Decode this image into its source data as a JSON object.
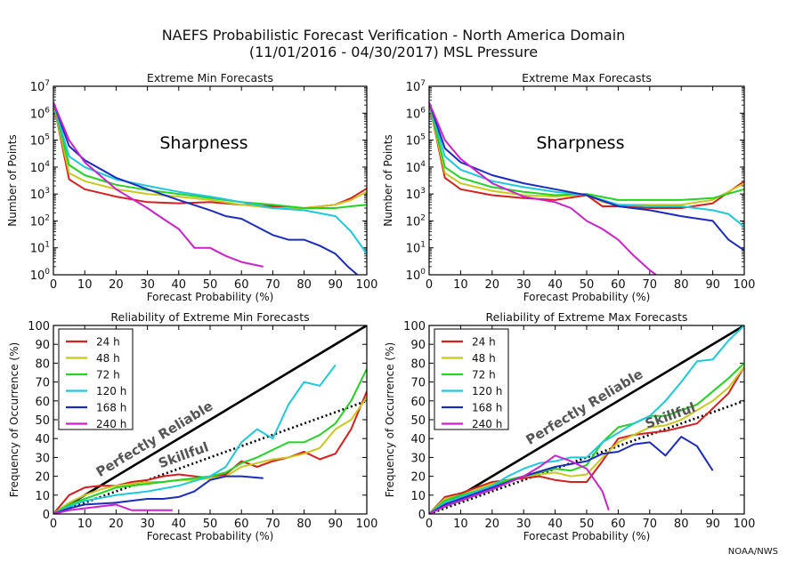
{
  "page": {
    "title_line1": "NAEFS Probabilistic Forecast Verification - North America Domain",
    "title_line2": "(11/01/2016 - 04/30/2017) MSL Pressure",
    "credit": "NOAA/NWS"
  },
  "colors": {
    "24 h": "#d61f1f",
    "48 h": "#c8c81e",
    "72 h": "#22d322",
    "120 h": "#1ec8dc",
    "168 h": "#1c2bbf",
    "240 h": "#cc22cc"
  },
  "chart_data": [
    {
      "id": "sharp-min",
      "type": "line",
      "yscale": "log",
      "title": "Extreme Min Forecasts",
      "xlabel": "Forecast Probability (%)",
      "ylabel": "Number of Points",
      "annotation": "Sharpness",
      "xlim": [
        0,
        100
      ],
      "ylim": [
        1,
        10000000
      ],
      "xticks": [
        "0",
        "10",
        "20",
        "30",
        "40",
        "50",
        "60",
        "70",
        "80",
        "90",
        "100"
      ],
      "yticks": [
        {
          "base": "10",
          "exp": "0"
        },
        {
          "base": "10",
          "exp": "1"
        },
        {
          "base": "10",
          "exp": "2"
        },
        {
          "base": "10",
          "exp": "3"
        },
        {
          "base": "10",
          "exp": "4"
        },
        {
          "base": "10",
          "exp": "5"
        },
        {
          "base": "10",
          "exp": "6"
        },
        {
          "base": "10",
          "exp": "7"
        }
      ],
      "series": [
        {
          "name": "24 h",
          "x": [
            0,
            5,
            10,
            20,
            30,
            40,
            50,
            60,
            70,
            80,
            90,
            95,
            100
          ],
          "values": [
            2500000,
            3500,
            1500,
            800,
            500,
            450,
            500,
            400,
            350,
            300,
            400,
            700,
            1600
          ]
        },
        {
          "name": "48 h",
          "x": [
            0,
            5,
            10,
            20,
            30,
            40,
            50,
            60,
            70,
            80,
            90,
            95,
            100
          ],
          "values": [
            2500000,
            6000,
            3000,
            1500,
            1000,
            800,
            600,
            400,
            300,
            300,
            400,
            600,
            1200
          ]
        },
        {
          "name": "72 h",
          "x": [
            0,
            5,
            10,
            20,
            30,
            40,
            50,
            60,
            70,
            80,
            90,
            95,
            100
          ],
          "values": [
            2500000,
            12000,
            5000,
            2200,
            1400,
            1000,
            700,
            500,
            400,
            300,
            300,
            350,
            400
          ]
        },
        {
          "name": "120 h",
          "x": [
            0,
            5,
            10,
            20,
            30,
            40,
            50,
            60,
            70,
            80,
            90,
            95,
            100
          ],
          "values": [
            2500000,
            25000,
            10000,
            3500,
            2000,
            1200,
            800,
            500,
            300,
            250,
            150,
            40,
            6
          ]
        },
        {
          "name": "168 h",
          "x": [
            0,
            5,
            10,
            20,
            30,
            40,
            50,
            55,
            60,
            65,
            70,
            75,
            80,
            85,
            90,
            94,
            97
          ],
          "values": [
            2500000,
            60000,
            18000,
            4000,
            1500,
            600,
            250,
            150,
            120,
            60,
            30,
            20,
            20,
            12,
            6,
            2,
            1
          ]
        },
        {
          "name": "240 h",
          "x": [
            0,
            5,
            10,
            20,
            30,
            35,
            40,
            45,
            50,
            55,
            60,
            67
          ],
          "values": [
            2500000,
            100000,
            15000,
            1500,
            300,
            120,
            50,
            10,
            10,
            5,
            3,
            2
          ]
        }
      ]
    },
    {
      "id": "sharp-max",
      "type": "line",
      "yscale": "log",
      "title": "Extreme Max Forecasts",
      "xlabel": "Forecast Probability (%)",
      "ylabel": "Number of Points",
      "annotation": "Sharpness",
      "xlim": [
        0,
        100
      ],
      "ylim": [
        1,
        10000000
      ],
      "xticks": [
        "0",
        "10",
        "20",
        "30",
        "40",
        "50",
        "60",
        "70",
        "80",
        "90",
        "100"
      ],
      "yticks": [
        {
          "base": "10",
          "exp": "0"
        },
        {
          "base": "10",
          "exp": "1"
        },
        {
          "base": "10",
          "exp": "2"
        },
        {
          "base": "10",
          "exp": "3"
        },
        {
          "base": "10",
          "exp": "4"
        },
        {
          "base": "10",
          "exp": "5"
        },
        {
          "base": "10",
          "exp": "6"
        },
        {
          "base": "10",
          "exp": "7"
        }
      ],
      "series": [
        {
          "name": "24 h",
          "x": [
            0,
            5,
            10,
            20,
            30,
            40,
            50,
            55,
            60,
            70,
            80,
            90,
            100
          ],
          "values": [
            2500000,
            4000,
            1500,
            900,
            700,
            600,
            900,
            350,
            350,
            300,
            300,
            450,
            3000
          ]
        },
        {
          "name": "48 h",
          "x": [
            0,
            5,
            10,
            20,
            30,
            40,
            50,
            55,
            60,
            70,
            80,
            90,
            100
          ],
          "values": [
            2500000,
            6000,
            2500,
            1300,
            900,
            800,
            1000,
            500,
            400,
            400,
            400,
            600,
            2500
          ]
        },
        {
          "name": "72 h",
          "x": [
            0,
            5,
            10,
            20,
            30,
            40,
            50,
            60,
            70,
            80,
            90,
            100
          ],
          "values": [
            2500000,
            10000,
            4000,
            1800,
            1200,
            900,
            1000,
            600,
            600,
            600,
            700,
            1500
          ]
        },
        {
          "name": "120 h",
          "x": [
            0,
            5,
            10,
            20,
            30,
            40,
            50,
            60,
            70,
            80,
            90,
            95,
            100
          ],
          "values": [
            2500000,
            25000,
            8000,
            3000,
            1800,
            1200,
            900,
            400,
            350,
            350,
            250,
            180,
            60
          ]
        },
        {
          "name": "168 h",
          "x": [
            0,
            5,
            10,
            20,
            30,
            40,
            50,
            60,
            70,
            80,
            90,
            95,
            100
          ],
          "values": [
            2500000,
            50000,
            15000,
            5000,
            2500,
            1500,
            900,
            350,
            250,
            150,
            100,
            20,
            8
          ]
        },
        {
          "name": "240 h",
          "x": [
            0,
            5,
            10,
            20,
            30,
            40,
            45,
            50,
            55,
            60,
            65,
            70,
            72
          ],
          "values": [
            2500000,
            100000,
            20000,
            2500,
            800,
            500,
            300,
            100,
            50,
            20,
            5,
            1.5,
            1
          ]
        }
      ]
    },
    {
      "id": "rel-min",
      "type": "line",
      "title": "Reliability of Extreme Min Forecasts",
      "xlabel": "Forecast Probability (%)",
      "ylabel": "Frequency of Occurrence (%)",
      "xlim": [
        0,
        100
      ],
      "ylim": [
        0,
        100
      ],
      "xticks": [
        "0",
        "10",
        "20",
        "30",
        "40",
        "50",
        "60",
        "70",
        "80",
        "90",
        "100"
      ],
      "yticks": [
        "0",
        "10",
        "20",
        "30",
        "40",
        "50",
        "60",
        "70",
        "80",
        "90",
        "100"
      ],
      "reference_lines": [
        {
          "label": "Perfectly Reliable",
          "x": [
            0,
            100
          ],
          "y": [
            0,
            100
          ],
          "style": "solid"
        },
        {
          "label": "Skillful",
          "x": [
            0,
            100
          ],
          "y": [
            0,
            60
          ],
          "style": "dotted"
        }
      ],
      "series": [
        {
          "name": "24 h",
          "x": [
            0,
            5,
            10,
            15,
            20,
            25,
            30,
            35,
            40,
            45,
            50,
            55,
            60,
            65,
            70,
            75,
            80,
            85,
            90,
            95,
            100
          ],
          "values": [
            0,
            10,
            14,
            15,
            15,
            17,
            18,
            20,
            21,
            20,
            19,
            21,
            28,
            25,
            28,
            30,
            33,
            29,
            32,
            45,
            65
          ]
        },
        {
          "name": "48 h",
          "x": [
            0,
            5,
            10,
            15,
            20,
            25,
            30,
            35,
            40,
            45,
            50,
            55,
            60,
            65,
            70,
            75,
            80,
            85,
            90,
            95,
            100
          ],
          "values": [
            0,
            6,
            10,
            13,
            15,
            16,
            17,
            17,
            18,
            18,
            19,
            20,
            25,
            27,
            29,
            30,
            32,
            35,
            45,
            50,
            62
          ]
        },
        {
          "name": "72 h",
          "x": [
            0,
            5,
            10,
            15,
            20,
            25,
            30,
            35,
            40,
            45,
            50,
            55,
            60,
            65,
            70,
            75,
            80,
            85,
            90,
            95,
            100
          ],
          "values": [
            0,
            5,
            8,
            11,
            14,
            15,
            16,
            17,
            18,
            19,
            20,
            22,
            27,
            30,
            34,
            38,
            38,
            42,
            48,
            60,
            77
          ]
        },
        {
          "name": "120 h",
          "x": [
            0,
            5,
            10,
            20,
            30,
            40,
            50,
            55,
            60,
            65,
            70,
            75,
            80,
            85,
            90
          ],
          "values": [
            0,
            4,
            7,
            10,
            12,
            15,
            20,
            25,
            38,
            45,
            40,
            58,
            70,
            68,
            79
          ]
        },
        {
          "name": "168 h",
          "x": [
            0,
            5,
            10,
            20,
            30,
            35,
            40,
            45,
            50,
            55,
            60,
            67
          ],
          "values": [
            0,
            3,
            5,
            6,
            8,
            8,
            9,
            12,
            18,
            20,
            20,
            19
          ]
        },
        {
          "name": "240 h",
          "x": [
            0,
            5,
            10,
            15,
            20,
            25,
            30,
            38
          ],
          "values": [
            0,
            2,
            3,
            4,
            5,
            2,
            2,
            2
          ]
        }
      ]
    },
    {
      "id": "rel-max",
      "type": "line",
      "title": "Reliability of Extreme Max Forecasts",
      "xlabel": "Forecast Probability (%)",
      "ylabel": "Frequency of Occurrence (%)",
      "xlim": [
        0,
        100
      ],
      "ylim": [
        0,
        100
      ],
      "xticks": [
        "0",
        "10",
        "20",
        "30",
        "40",
        "50",
        "60",
        "70",
        "80",
        "90",
        "100"
      ],
      "yticks": [
        "0",
        "10",
        "20",
        "30",
        "40",
        "50",
        "60",
        "70",
        "80",
        "90",
        "100"
      ],
      "reference_lines": [
        {
          "label": "Perfectly Reliable",
          "x": [
            0,
            100
          ],
          "y": [
            0,
            100
          ],
          "style": "solid"
        },
        {
          "label": "Skillful",
          "x": [
            0,
            100
          ],
          "y": [
            0,
            60
          ],
          "style": "dotted"
        }
      ],
      "series": [
        {
          "name": "24 h",
          "x": [
            0,
            5,
            10,
            15,
            20,
            25,
            30,
            35,
            40,
            45,
            50,
            55,
            60,
            65,
            70,
            75,
            80,
            85,
            90,
            95,
            100
          ],
          "values": [
            0,
            9,
            11,
            14,
            17,
            18,
            19,
            20,
            18,
            17,
            17,
            28,
            40,
            42,
            43,
            44,
            46,
            48,
            56,
            64,
            78
          ]
        },
        {
          "name": "48 h",
          "x": [
            0,
            5,
            10,
            15,
            20,
            25,
            30,
            35,
            40,
            45,
            50,
            55,
            60,
            65,
            70,
            75,
            80,
            85,
            90,
            95,
            100
          ],
          "values": [
            0,
            8,
            10,
            13,
            16,
            18,
            20,
            21,
            22,
            20,
            21,
            30,
            38,
            42,
            46,
            47,
            50,
            55,
            60,
            67,
            78
          ]
        },
        {
          "name": "72 h",
          "x": [
            0,
            5,
            10,
            15,
            20,
            25,
            30,
            35,
            40,
            45,
            50,
            55,
            60,
            65,
            70,
            75,
            80,
            85,
            90,
            95,
            100
          ],
          "values": [
            0,
            7,
            10,
            12,
            15,
            18,
            20,
            22,
            24,
            23,
            26,
            38,
            46,
            48,
            52,
            52,
            55,
            58,
            65,
            72,
            80
          ]
        },
        {
          "name": "120 h",
          "x": [
            0,
            5,
            10,
            15,
            20,
            25,
            30,
            35,
            40,
            45,
            50,
            55,
            60,
            65,
            70,
            75,
            80,
            85,
            90,
            95,
            100
          ],
          "values": [
            0,
            6,
            9,
            12,
            15,
            20,
            24,
            27,
            28,
            30,
            30,
            38,
            43,
            48,
            52,
            60,
            70,
            81,
            82,
            92,
            100
          ]
        },
        {
          "name": "168 h",
          "x": [
            0,
            5,
            10,
            20,
            30,
            40,
            50,
            55,
            60,
            65,
            70,
            75,
            80,
            85,
            90
          ],
          "values": [
            0,
            5,
            8,
            14,
            20,
            25,
            28,
            32,
            33,
            37,
            38,
            31,
            41,
            36,
            23
          ]
        },
        {
          "name": "240 h",
          "x": [
            0,
            5,
            10,
            20,
            30,
            35,
            40,
            45,
            50,
            55,
            57
          ],
          "values": [
            0,
            4,
            7,
            13,
            20,
            25,
            31,
            28,
            24,
            12,
            2
          ]
        }
      ]
    }
  ]
}
